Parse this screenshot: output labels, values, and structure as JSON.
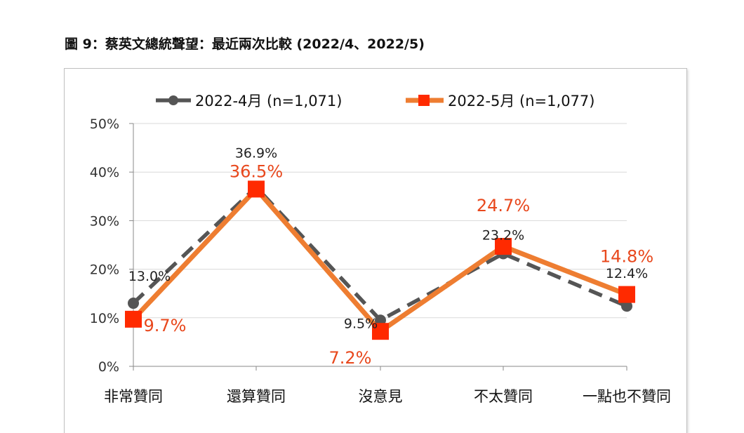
{
  "title": "圖 9：蔡英文總統聲望：最近兩次比較 (2022/4、2022/5)",
  "chart_data": {
    "type": "line",
    "categories": [
      "非常贊同",
      "還算贊同",
      "沒意見",
      "不太贊同",
      "一點也不贊同"
    ],
    "series": [
      {
        "name": "2022-4月  (n=1,071)",
        "values": [
          13.0,
          36.9,
          9.5,
          23.2,
          12.4
        ],
        "labels": [
          "13.0%",
          "36.9%",
          "9.5%",
          "23.2%",
          "12.4%"
        ],
        "color": "#555555"
      },
      {
        "name": "2022-5月  (n=1,077)",
        "values": [
          9.7,
          36.5,
          7.2,
          24.7,
          14.8
        ],
        "labels": [
          "9.7%",
          "36.5%",
          "7.2%",
          "24.7%",
          "14.8%"
        ],
        "color": "#ee7d31",
        "marker_color": "#ff2a00",
        "label_color": "#e8481d"
      }
    ],
    "ylim": [
      0,
      50
    ],
    "yticks": [
      "0%",
      "10%",
      "20%",
      "30%",
      "40%",
      "50%"
    ],
    "grid": true,
    "legend": "top"
  }
}
